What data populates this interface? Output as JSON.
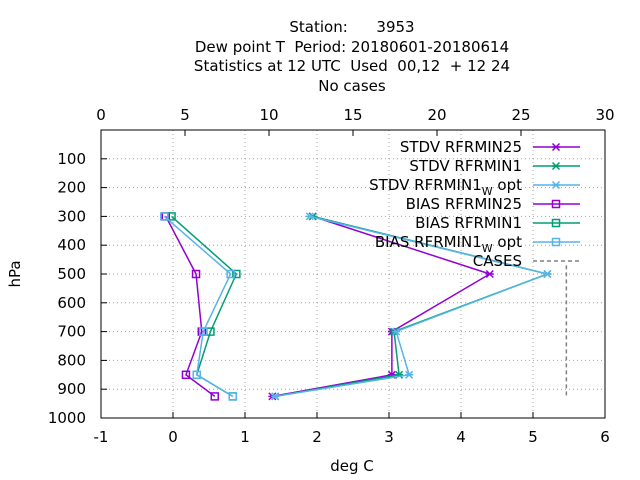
{
  "title": {
    "line1": "Station:      3953",
    "line2": "Dew point T  Period: 20180601-20180614",
    "line3": "Statistics at 12 UTC  Used  00,12  + 12 24",
    "line4": "No cases"
  },
  "chart_data": {
    "type": "line",
    "xlabel": "deg C",
    "ylabel": "hPa",
    "xlim": [
      -1,
      6
    ],
    "ylim": [
      1000,
      0
    ],
    "x2lim": [
      0,
      30
    ],
    "x_ticks": [
      "-1",
      "0",
      "1",
      "2",
      "3",
      "4",
      "5",
      "6"
    ],
    "x2_ticks": [
      "0",
      "5",
      "10",
      "15",
      "20",
      "25",
      "30"
    ],
    "y_ticks": [
      "100",
      "200",
      "300",
      "400",
      "500",
      "600",
      "700",
      "800",
      "900",
      "1000"
    ],
    "grid": true,
    "legend_position": "top-right",
    "series": [
      {
        "name": "STDV RFRMIN25",
        "sub": "",
        "suffix": "",
        "color": "#9400d3",
        "marker": "star",
        "points": [
          [
            1.94,
            300
          ],
          [
            4.4,
            500
          ],
          [
            3.04,
            700
          ],
          [
            3.04,
            850
          ],
          [
            1.38,
            925
          ]
        ]
      },
      {
        "name": "STDV RFRMIN1",
        "sub": "",
        "suffix": "",
        "color": "#009e73",
        "marker": "star",
        "points": [
          [
            1.94,
            300
          ],
          [
            5.2,
            500
          ],
          [
            3.07,
            700
          ],
          [
            3.14,
            850
          ],
          [
            1.42,
            925
          ]
        ]
      },
      {
        "name": "STDV RFRMIN1",
        "sub": "W",
        "suffix": " opt",
        "color": "#56b4e9",
        "marker": "star",
        "points": [
          [
            1.9,
            300
          ],
          [
            5.2,
            500
          ],
          [
            3.1,
            700
          ],
          [
            3.28,
            850
          ],
          [
            1.42,
            925
          ]
        ]
      },
      {
        "name": "BIAS RFRMIN25",
        "sub": "",
        "suffix": "",
        "color": "#9400d3",
        "marker": "square",
        "points": [
          [
            -0.1,
            300
          ],
          [
            0.32,
            500
          ],
          [
            0.4,
            700
          ],
          [
            0.18,
            850
          ],
          [
            0.58,
            925
          ]
        ]
      },
      {
        "name": "BIAS RFRMIN1",
        "sub": "",
        "suffix": "",
        "color": "#009e73",
        "marker": "square",
        "points": [
          [
            -0.02,
            300
          ],
          [
            0.88,
            500
          ],
          [
            0.52,
            700
          ],
          [
            0.33,
            850
          ],
          [
            0.83,
            925
          ]
        ]
      },
      {
        "name": "BIAS RFRMIN1",
        "sub": "W",
        "suffix": " opt",
        "color": "#56b4e9",
        "marker": "square",
        "points": [
          [
            -0.12,
            300
          ],
          [
            0.8,
            500
          ],
          [
            0.42,
            700
          ],
          [
            0.33,
            850
          ],
          [
            0.83,
            925
          ]
        ]
      },
      {
        "name": "CASES",
        "sub": "",
        "suffix": "",
        "color": "#808080",
        "marker": "none",
        "dashed": true,
        "axis": "x2",
        "points": [
          [
            27.7,
            925
          ]
        ]
      }
    ]
  }
}
